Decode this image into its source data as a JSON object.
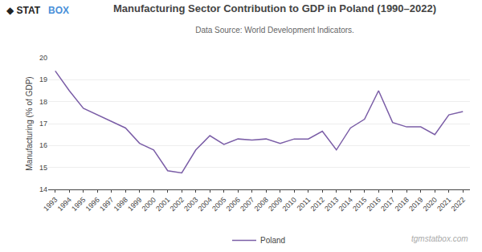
{
  "chart_data": {
    "type": "line",
    "title": "Manufacturing Sector Contribution to GDP in Poland (1990–2022)",
    "subtitle": "Data Source: World Development Indicators.",
    "y_label": "Manufacturing (% of GDP)",
    "x": [
      1993,
      1994,
      1995,
      1996,
      1997,
      1998,
      1999,
      2000,
      2001,
      2002,
      2003,
      2004,
      2005,
      2006,
      2007,
      2008,
      2009,
      2010,
      2011,
      2012,
      2013,
      2014,
      2015,
      2016,
      2017,
      2018,
      2019,
      2020,
      2021,
      2022
    ],
    "series": [
      {
        "name": "Poland",
        "color": "#7B5EA7",
        "values": [
          19.4,
          18.5,
          17.7,
          17.4,
          17.1,
          16.8,
          16.1,
          15.8,
          14.85,
          14.75,
          15.8,
          16.45,
          16.05,
          16.3,
          16.25,
          16.3,
          16.1,
          16.3,
          16.3,
          16.65,
          15.8,
          16.8,
          17.2,
          18.5,
          17.05,
          16.85,
          16.85,
          16.5,
          17.4,
          17.55
        ]
      }
    ],
    "xlim": [
      1992.5,
      2022.5
    ],
    "xticks": [
      1993,
      1994,
      1995,
      1996,
      1997,
      1998,
      1999,
      2000,
      2001,
      2002,
      2003,
      2004,
      2005,
      2006,
      2007,
      2008,
      2009,
      2010,
      2011,
      2012,
      2013,
      2014,
      2015,
      2016,
      2017,
      2018,
      2019,
      2020,
      2021,
      2022
    ],
    "ylim": [
      14,
      20
    ],
    "yticks": [
      14,
      15,
      16,
      17,
      18,
      19,
      20
    ],
    "grid": true,
    "legend": "bottom",
    "annotations": [
      {
        "text": "◆ STAT",
        "color": "#222222"
      },
      {
        "text": "BOX",
        "color": "#4a90d9"
      },
      {
        "text": "tgmstatbox.com",
        "color": "#aaaaaa"
      }
    ]
  }
}
